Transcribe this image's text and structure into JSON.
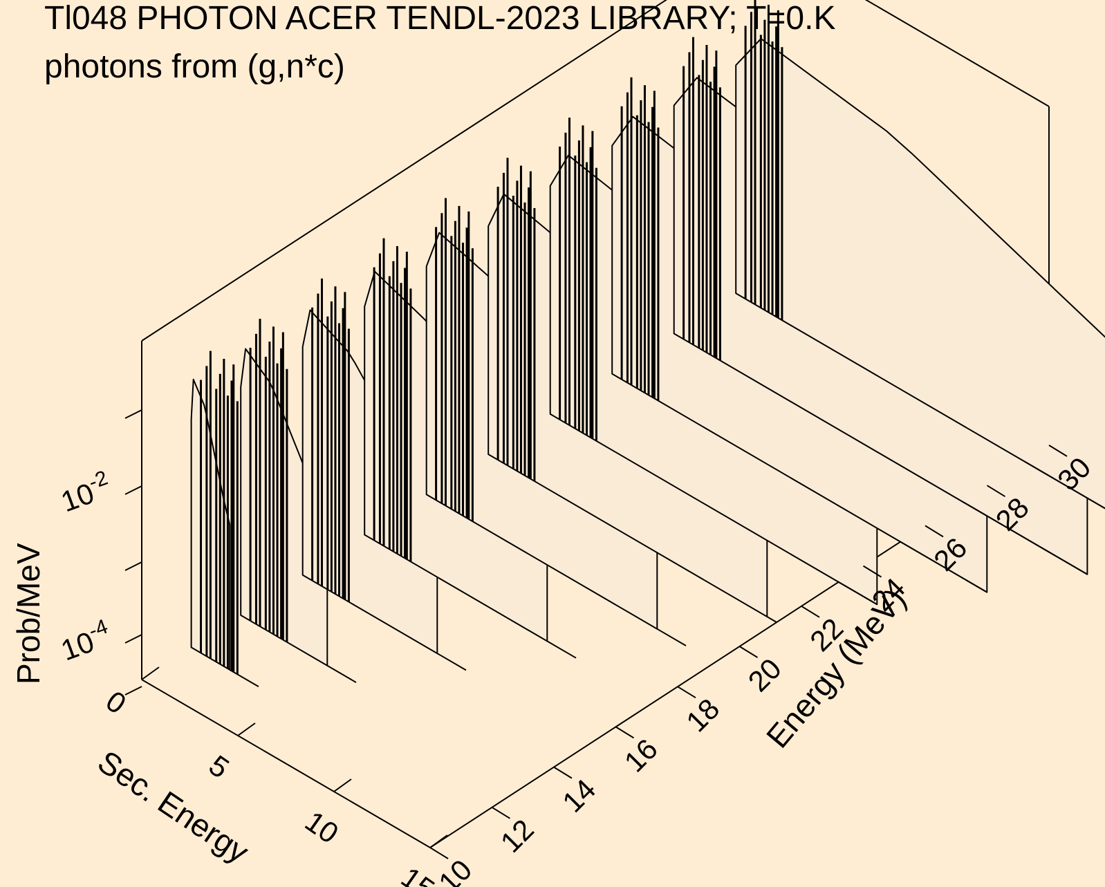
{
  "title": {
    "line1": "Tl048 PHOTON ACER TENDL-2023 LIBRARY; T=0.K",
    "line2": "photons from (g,n*c)"
  },
  "colors": {
    "background": "#ffedd3",
    "fill": "#faebd7",
    "line": "#000000"
  },
  "chart_data": {
    "type": "3d-waterfall",
    "zlabel": "Prob/MeV",
    "xlabel": "Sec. Energy",
    "ylabel": "Energy (MeV)",
    "xlim": [
      0,
      15
    ],
    "ylim": [
      10,
      30
    ],
    "zscale": "log",
    "xticks": [
      "0",
      "5",
      "10",
      "15"
    ],
    "yticks": [
      "10",
      "12",
      "14",
      "16",
      "18",
      "20",
      "22",
      "24",
      "26",
      "28",
      "30"
    ],
    "zticks": [
      {
        "base": "10",
        "exp": "-4"
      },
      {
        "base": "10",
        "exp": "-2"
      }
    ],
    "incident_energies": [
      11.6,
      13.2,
      15.2,
      17.2,
      19.2,
      21.2,
      23.2,
      25.2,
      27.2,
      29.2
    ],
    "spectrum_edge_secondary_energy": [
      2,
      4.5,
      7,
      9.5,
      12,
      14.5,
      17,
      19.5,
      21.5,
      23.5
    ],
    "discrete_lines_secondary_energy": [
      0.5,
      0.8,
      1.0,
      1.3,
      1.5,
      1.7,
      1.9,
      2.1,
      2.2,
      2.4
    ]
  }
}
